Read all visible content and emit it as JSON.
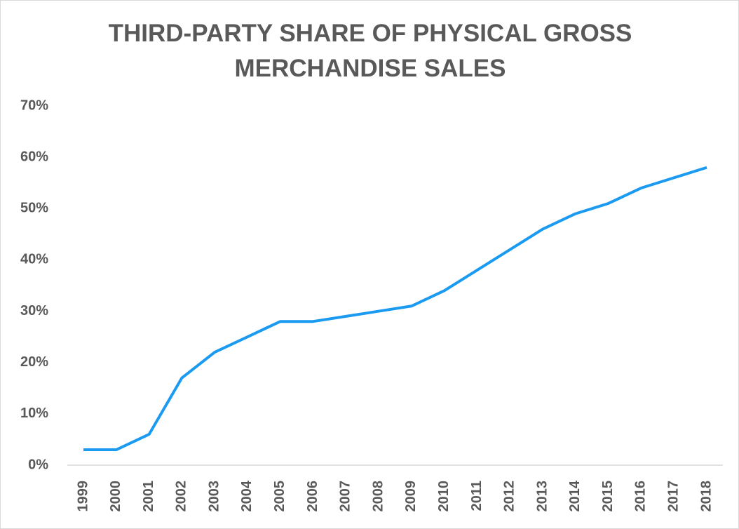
{
  "chart_data": {
    "type": "line",
    "title": "THIRD-PARTY SHARE OF PHYSICAL GROSS MERCHANDISE SALES",
    "categories": [
      "1999",
      "2000",
      "2001",
      "2002",
      "2003",
      "2004",
      "2005",
      "2006",
      "2007",
      "2008",
      "2009",
      "2010",
      "2011",
      "2012",
      "2013",
      "2014",
      "2015",
      "2016",
      "2017",
      "2018"
    ],
    "values": [
      3,
      3,
      6,
      17,
      22,
      25,
      28,
      28,
      29,
      30,
      31,
      34,
      38,
      42,
      46,
      49,
      51,
      54,
      56,
      58
    ],
    "color": "#1a9af0",
    "ylim": [
      0,
      70
    ],
    "yticks": [
      {
        "value": 0,
        "label": "0%"
      },
      {
        "value": 10,
        "label": "10%"
      },
      {
        "value": 20,
        "label": "20%"
      },
      {
        "value": 30,
        "label": "30%"
      },
      {
        "value": 40,
        "label": "40%"
      },
      {
        "value": 50,
        "label": "50%"
      },
      {
        "value": 60,
        "label": "60%"
      },
      {
        "value": 70,
        "label": "70%"
      }
    ],
    "grid": false
  }
}
